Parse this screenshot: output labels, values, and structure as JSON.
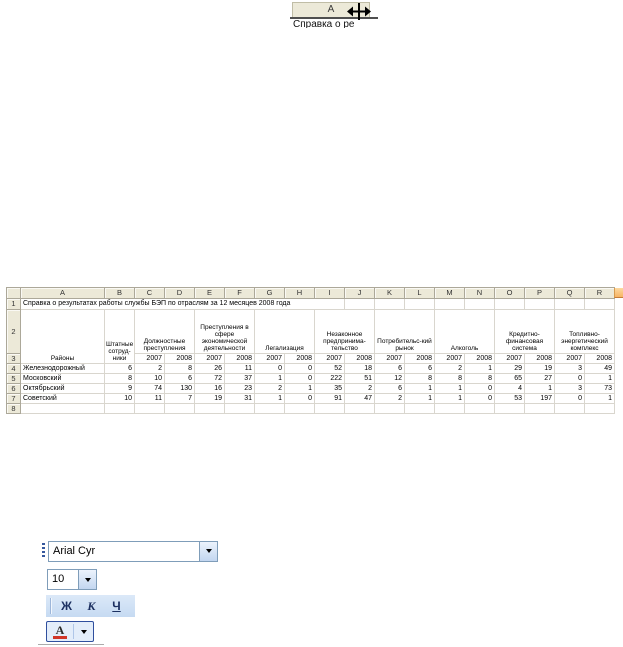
{
  "top_fragment": {
    "column_header": "A",
    "clipped_cell_text": "Справка о ре",
    "cursor_icon": "column-resize-cursor"
  },
  "spreadsheet": {
    "column_headers": [
      "A",
      "B",
      "C",
      "D",
      "E",
      "F",
      "G",
      "H",
      "I",
      "J",
      "K",
      "L",
      "M",
      "N",
      "O",
      "P",
      "Q",
      "R"
    ],
    "row_numbers": [
      "1",
      "2",
      "3",
      "4",
      "5",
      "6",
      "7",
      "8"
    ],
    "title": "Справка о результатах работы службы БЭП по отраслям за 12 месяцев 2008 года",
    "header": {
      "districts": "Районы",
      "staff": "Штатные сотруд-ники",
      "groups": [
        "Должностные преступления",
        "Преступления в сфере экономической деятельности",
        "Легализация",
        "Незаконное предпринима-тельство",
        "Потребительс-кий рынок",
        "Алкоголь",
        "Кредитно-финансовая система",
        "Топливно-энергетический комплекс"
      ],
      "years": [
        "2007",
        "2008"
      ]
    },
    "rows": [
      {
        "district": "Железнодорожный",
        "values": [
          "6",
          "2",
          "8",
          "26",
          "11",
          "0",
          "0",
          "52",
          "18",
          "6",
          "6",
          "2",
          "1",
          "29",
          "19",
          "3",
          "49"
        ]
      },
      {
        "district": "Московский",
        "values": [
          "8",
          "10",
          "6",
          "72",
          "37",
          "1",
          "0",
          "222",
          "51",
          "12",
          "8",
          "8",
          "8",
          "65",
          "27",
          "0",
          "1"
        ]
      },
      {
        "district": "Октябрьский",
        "values": [
          "9",
          "74",
          "130",
          "16",
          "23",
          "2",
          "1",
          "35",
          "2",
          "6",
          "1",
          "1",
          "0",
          "4",
          "1",
          "3",
          "73"
        ]
      },
      {
        "district": "Советский",
        "values": [
          "10",
          "11",
          "7",
          "19",
          "31",
          "1",
          "0",
          "91",
          "47",
          "2",
          "1",
          "1",
          "0",
          "53",
          "197",
          "0",
          "1"
        ]
      }
    ]
  },
  "toolbar": {
    "font_name": "Arial Cyr",
    "font_size": "10",
    "bold_label": "Ж",
    "italic_label": "К",
    "underline_label": "Ч",
    "font_color_label": "A"
  },
  "colors": {
    "header_beige": "#ECE9D8",
    "header_border": "#ACA899",
    "gridline": "#D9D6CE",
    "selected_header_orange": "#F7B463",
    "toolbar_blue": "#D0E0F3",
    "combo_border": "#7F9DB9",
    "font_color_red": "#D13427",
    "format_letter_navy": "#1C3061"
  }
}
